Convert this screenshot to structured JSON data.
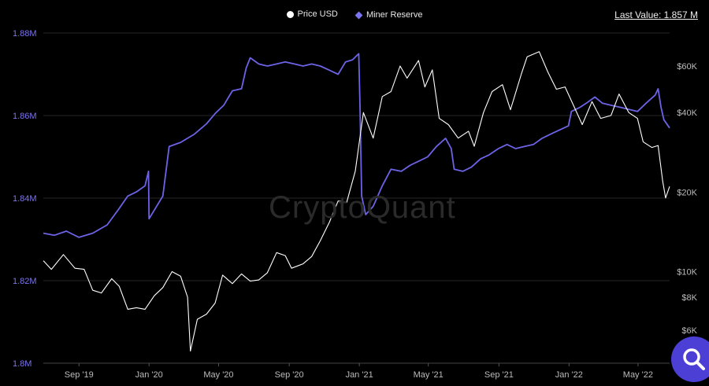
{
  "legend": {
    "price_label": "Price USD",
    "reserve_label": "Miner Reserve",
    "price_color": "#ffffff",
    "reserve_color": "#6c63e6"
  },
  "last_value": "Last Value: 1.857 M",
  "watermark": "CryptoQuant",
  "search_icon": "search-icon",
  "chart_data": {
    "type": "line",
    "x_tick_labels": [
      "Sep '19",
      "Jan '20",
      "May '20",
      "Sep '20",
      "Jan '21",
      "May '21",
      "Sep '21",
      "Jan '22",
      "May '22"
    ],
    "x_tick_dates": [
      "2019-09-01",
      "2020-01-01",
      "2020-05-01",
      "2020-09-01",
      "2021-01-01",
      "2021-05-01",
      "2021-09-01",
      "2022-01-01",
      "2022-05-01"
    ],
    "x_range": [
      "2019-07-01",
      "2022-06-25"
    ],
    "left_axis": {
      "series": "Miner Reserve",
      "range": [
        1800000,
        1880000
      ],
      "ticks": [
        1800000,
        1820000,
        1840000,
        1860000,
        1880000
      ],
      "tick_labels": [
        "1.8M",
        "1.82M",
        "1.84M",
        "1.86M",
        "1.88M"
      ],
      "color": "#7b73f0"
    },
    "right_axis": {
      "series": "Price USD",
      "scale": "log",
      "range": [
        4500,
        80000
      ],
      "ticks": [
        6000,
        8000,
        10000,
        20000,
        40000,
        60000
      ],
      "tick_labels": [
        "$6K",
        "$8K",
        "$10K",
        "$20K",
        "$40K",
        "$60K"
      ],
      "color": "#bbbbbb"
    },
    "grid": "horizontal",
    "legend_position": "top-center",
    "series": [
      {
        "name": "Miner Reserve",
        "axis": "left",
        "color": "#6c63e6",
        "points": [
          [
            "2019-07-01",
            1831500
          ],
          [
            "2019-07-20",
            1831000
          ],
          [
            "2019-08-10",
            1832000
          ],
          [
            "2019-09-01",
            1830500
          ],
          [
            "2019-09-25",
            1831500
          ],
          [
            "2019-10-20",
            1833500
          ],
          [
            "2019-11-10",
            1837500
          ],
          [
            "2019-11-25",
            1840500
          ],
          [
            "2019-12-10",
            1841500
          ],
          [
            "2019-12-25",
            1843000
          ],
          [
            "2019-12-31",
            1846500
          ],
          [
            "2020-01-01",
            1835000
          ],
          [
            "2020-01-25",
            1840500
          ],
          [
            "2020-02-05",
            1852500
          ],
          [
            "2020-02-25",
            1853500
          ],
          [
            "2020-03-20",
            1855500
          ],
          [
            "2020-04-10",
            1858000
          ],
          [
            "2020-04-25",
            1860500
          ],
          [
            "2020-05-10",
            1862500
          ],
          [
            "2020-05-25",
            1866000
          ],
          [
            "2020-06-10",
            1866500
          ],
          [
            "2020-06-18",
            1871500
          ],
          [
            "2020-06-25",
            1874000
          ],
          [
            "2020-07-10",
            1872500
          ],
          [
            "2020-07-25",
            1872000
          ],
          [
            "2020-08-10",
            1872500
          ],
          [
            "2020-08-25",
            1873000
          ],
          [
            "2020-09-10",
            1872500
          ],
          [
            "2020-09-25",
            1872000
          ],
          [
            "2020-10-10",
            1872500
          ],
          [
            "2020-10-25",
            1872000
          ],
          [
            "2020-11-10",
            1871000
          ],
          [
            "2020-11-25",
            1870000
          ],
          [
            "2020-12-08",
            1873000
          ],
          [
            "2020-12-20",
            1873500
          ],
          [
            "2020-12-31",
            1875000
          ],
          [
            "2021-01-02",
            1863000
          ],
          [
            "2021-01-05",
            1840500
          ],
          [
            "2021-01-12",
            1836000
          ],
          [
            "2021-01-25",
            1838000
          ],
          [
            "2021-02-10",
            1843000
          ],
          [
            "2021-02-25",
            1847000
          ],
          [
            "2021-03-15",
            1846500
          ],
          [
            "2021-03-31",
            1848000
          ],
          [
            "2021-04-15",
            1849000
          ],
          [
            "2021-04-30",
            1850000
          ],
          [
            "2021-05-15",
            1852500
          ],
          [
            "2021-05-31",
            1854500
          ],
          [
            "2021-06-10",
            1852000
          ],
          [
            "2021-06-15",
            1847000
          ],
          [
            "2021-06-30",
            1846500
          ],
          [
            "2021-07-15",
            1847500
          ],
          [
            "2021-07-31",
            1849500
          ],
          [
            "2021-08-15",
            1850500
          ],
          [
            "2021-08-31",
            1852000
          ],
          [
            "2021-09-15",
            1853000
          ],
          [
            "2021-09-30",
            1852000
          ],
          [
            "2021-10-15",
            1852500
          ],
          [
            "2021-10-31",
            1853000
          ],
          [
            "2021-11-15",
            1854500
          ],
          [
            "2021-11-30",
            1855500
          ],
          [
            "2021-12-15",
            1856500
          ],
          [
            "2021-12-31",
            1857500
          ],
          [
            "2022-01-05",
            1861000
          ],
          [
            "2022-01-20",
            1862000
          ],
          [
            "2022-01-31",
            1863000
          ],
          [
            "2022-02-15",
            1864500
          ],
          [
            "2022-02-28",
            1863000
          ],
          [
            "2022-03-15",
            1862500
          ],
          [
            "2022-03-31",
            1862000
          ],
          [
            "2022-04-15",
            1861500
          ],
          [
            "2022-04-30",
            1861000
          ],
          [
            "2022-05-15",
            1863000
          ],
          [
            "2022-05-31",
            1865000
          ],
          [
            "2022-06-05",
            1866500
          ],
          [
            "2022-06-10",
            1862000
          ],
          [
            "2022-06-15",
            1859000
          ],
          [
            "2022-06-25",
            1857000
          ]
        ]
      },
      {
        "name": "Price USD",
        "axis": "right",
        "color": "#ffffff",
        "points": [
          [
            "2019-07-01",
            11000
          ],
          [
            "2019-07-15",
            10200
          ],
          [
            "2019-08-05",
            11600
          ],
          [
            "2019-08-25",
            10300
          ],
          [
            "2019-09-10",
            10200
          ],
          [
            "2019-09-25",
            8500
          ],
          [
            "2019-10-10",
            8300
          ],
          [
            "2019-10-28",
            9400
          ],
          [
            "2019-11-10",
            8800
          ],
          [
            "2019-11-25",
            7200
          ],
          [
            "2019-12-10",
            7300
          ],
          [
            "2019-12-25",
            7200
          ],
          [
            "2020-01-10",
            8100
          ],
          [
            "2020-01-25",
            8700
          ],
          [
            "2020-02-10",
            10000
          ],
          [
            "2020-02-25",
            9600
          ],
          [
            "2020-03-08",
            8000
          ],
          [
            "2020-03-13",
            5000
          ],
          [
            "2020-03-25",
            6600
          ],
          [
            "2020-04-10",
            6900
          ],
          [
            "2020-04-25",
            7600
          ],
          [
            "2020-05-08",
            9700
          ],
          [
            "2020-05-25",
            9000
          ],
          [
            "2020-06-10",
            9800
          ],
          [
            "2020-06-25",
            9200
          ],
          [
            "2020-07-10",
            9300
          ],
          [
            "2020-07-25",
            9900
          ],
          [
            "2020-08-10",
            11800
          ],
          [
            "2020-08-25",
            11500
          ],
          [
            "2020-09-05",
            10300
          ],
          [
            "2020-09-25",
            10700
          ],
          [
            "2020-10-10",
            11400
          ],
          [
            "2020-10-25",
            13100
          ],
          [
            "2020-11-10",
            15400
          ],
          [
            "2020-11-25",
            18500
          ],
          [
            "2020-12-10",
            18300
          ],
          [
            "2020-12-25",
            24000
          ],
          [
            "2021-01-08",
            40000
          ],
          [
            "2021-01-25",
            32000
          ],
          [
            "2021-02-10",
            46000
          ],
          [
            "2021-02-25",
            48000
          ],
          [
            "2021-03-13",
            60000
          ],
          [
            "2021-03-25",
            54000
          ],
          [
            "2021-04-14",
            63000
          ],
          [
            "2021-04-25",
            50000
          ],
          [
            "2021-05-08",
            58000
          ],
          [
            "2021-05-20",
            38000
          ],
          [
            "2021-06-05",
            36000
          ],
          [
            "2021-06-22",
            32000
          ],
          [
            "2021-07-10",
            34000
          ],
          [
            "2021-07-20",
            29800
          ],
          [
            "2021-08-05",
            40000
          ],
          [
            "2021-08-20",
            48000
          ],
          [
            "2021-09-07",
            51000
          ],
          [
            "2021-09-21",
            41000
          ],
          [
            "2021-10-10",
            56000
          ],
          [
            "2021-10-20",
            65000
          ],
          [
            "2021-11-10",
            68000
          ],
          [
            "2021-11-25",
            57000
          ],
          [
            "2021-12-10",
            49000
          ],
          [
            "2021-12-25",
            50000
          ],
          [
            "2022-01-10",
            42000
          ],
          [
            "2022-01-24",
            36000
          ],
          [
            "2022-02-10",
            44000
          ],
          [
            "2022-02-25",
            38000
          ],
          [
            "2022-03-15",
            39000
          ],
          [
            "2022-03-29",
            47000
          ],
          [
            "2022-04-15",
            40000
          ],
          [
            "2022-04-30",
            38000
          ],
          [
            "2022-05-10",
            31000
          ],
          [
            "2022-05-25",
            29500
          ],
          [
            "2022-06-05",
            30000
          ],
          [
            "2022-06-13",
            22000
          ],
          [
            "2022-06-18",
            19000
          ],
          [
            "2022-06-25",
            21000
          ]
        ]
      }
    ]
  }
}
